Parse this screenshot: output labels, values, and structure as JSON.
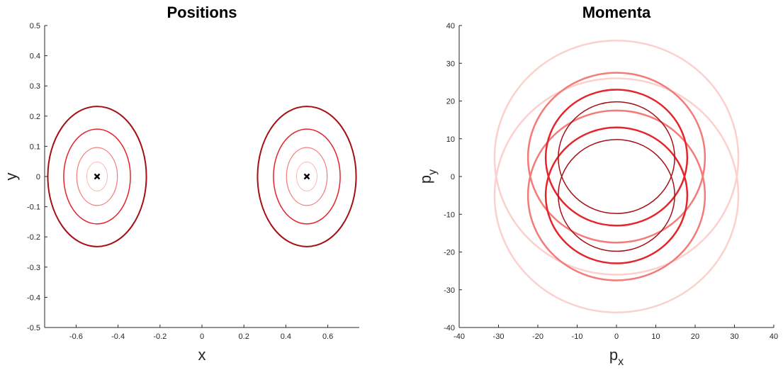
{
  "chart_data": [
    {
      "type": "contour",
      "title": "Positions",
      "xlabel": "x",
      "ylabel": "y",
      "xlim": [
        -0.75,
        0.75
      ],
      "ylim": [
        -0.5,
        0.5
      ],
      "xticks": [
        "-0.6",
        "-0.4",
        "-0.2",
        "0",
        "0.2",
        "0.4",
        "0.6"
      ],
      "xtick_values": [
        -0.6,
        -0.4,
        -0.2,
        0,
        0.2,
        0.4,
        0.6
      ],
      "yticks": [
        "-0.5",
        "-0.4",
        "-0.3",
        "-0.2",
        "-0.1",
        "0",
        "0.1",
        "0.2",
        "0.3",
        "0.4",
        "0.5"
      ],
      "ytick_values": [
        -0.5,
        -0.4,
        -0.3,
        -0.2,
        -0.1,
        0,
        0.1,
        0.2,
        0.3,
        0.4,
        0.5
      ],
      "grid": false,
      "ellipses": [
        {
          "cx": -0.5,
          "cy": 0,
          "rx": 0.235,
          "ry": 0.232,
          "color": "#a50f15",
          "width": 2.0
        },
        {
          "cx": -0.5,
          "cy": 0,
          "rx": 0.159,
          "ry": 0.157,
          "color": "#e4252c",
          "width": 1.5
        },
        {
          "cx": -0.5,
          "cy": 0,
          "rx": 0.097,
          "ry": 0.096,
          "color": "#f47b78",
          "width": 1.2
        },
        {
          "cx": -0.5,
          "cy": 0,
          "rx": 0.049,
          "ry": 0.048,
          "color": "#fbb9b5",
          "width": 1.0
        },
        {
          "cx": 0.5,
          "cy": 0,
          "rx": 0.235,
          "ry": 0.232,
          "color": "#a50f15",
          "width": 2.0
        },
        {
          "cx": 0.5,
          "cy": 0,
          "rx": 0.159,
          "ry": 0.157,
          "color": "#e4252c",
          "width": 1.5
        },
        {
          "cx": 0.5,
          "cy": 0,
          "rx": 0.097,
          "ry": 0.096,
          "color": "#f47b78",
          "width": 1.2
        },
        {
          "cx": 0.5,
          "cy": 0,
          "rx": 0.049,
          "ry": 0.048,
          "color": "#fbb9b5",
          "width": 1.0
        }
      ],
      "markers": [
        {
          "x": -0.5,
          "y": 0,
          "symbol": "x"
        },
        {
          "x": 0.5,
          "y": 0,
          "symbol": "x"
        }
      ]
    },
    {
      "type": "contour",
      "title": "Momenta",
      "xlabel": "p",
      "xlabel_sub": "x",
      "ylabel": "p",
      "ylabel_sub": "y",
      "xlim": [
        -40,
        40
      ],
      "ylim": [
        -40,
        40
      ],
      "xticks": [
        "-40",
        "-30",
        "-20",
        "-10",
        "0",
        "10",
        "20",
        "30",
        "40"
      ],
      "xtick_values": [
        -40,
        -30,
        -20,
        -10,
        0,
        10,
        20,
        30,
        40
      ],
      "yticks": [
        "-40",
        "-30",
        "-20",
        "-10",
        "0",
        "10",
        "20",
        "30",
        "40"
      ],
      "ytick_values": [
        -40,
        -30,
        -20,
        -10,
        0,
        10,
        20,
        30,
        40
      ],
      "grid": false,
      "ellipses": [
        {
          "cx": 0,
          "cy": 5,
          "rx": 31,
          "ry": 31,
          "color": "#fcd0cd",
          "width": 2.5
        },
        {
          "cx": 0,
          "cy": -5,
          "rx": 31,
          "ry": 31,
          "color": "#fcd0cd",
          "width": 2.5
        },
        {
          "cx": 0,
          "cy": 5,
          "rx": 22.5,
          "ry": 22.5,
          "color": "#f47b78",
          "width": 2.5
        },
        {
          "cx": 0,
          "cy": -5,
          "rx": 22.5,
          "ry": 22.5,
          "color": "#f47b78",
          "width": 2.5
        },
        {
          "cx": 0,
          "cy": 5,
          "rx": 18,
          "ry": 18,
          "color": "#e4252c",
          "width": 2.5
        },
        {
          "cx": 0,
          "cy": -5,
          "rx": 18,
          "ry": 18,
          "color": "#e4252c",
          "width": 2.5
        },
        {
          "cx": 0,
          "cy": 5,
          "rx": 14.8,
          "ry": 14.8,
          "color": "#a50f15",
          "width": 1.5
        },
        {
          "cx": 0,
          "cy": -5,
          "rx": 14.8,
          "ry": 14.8,
          "color": "#a50f15",
          "width": 1.5
        }
      ],
      "markers": []
    }
  ]
}
